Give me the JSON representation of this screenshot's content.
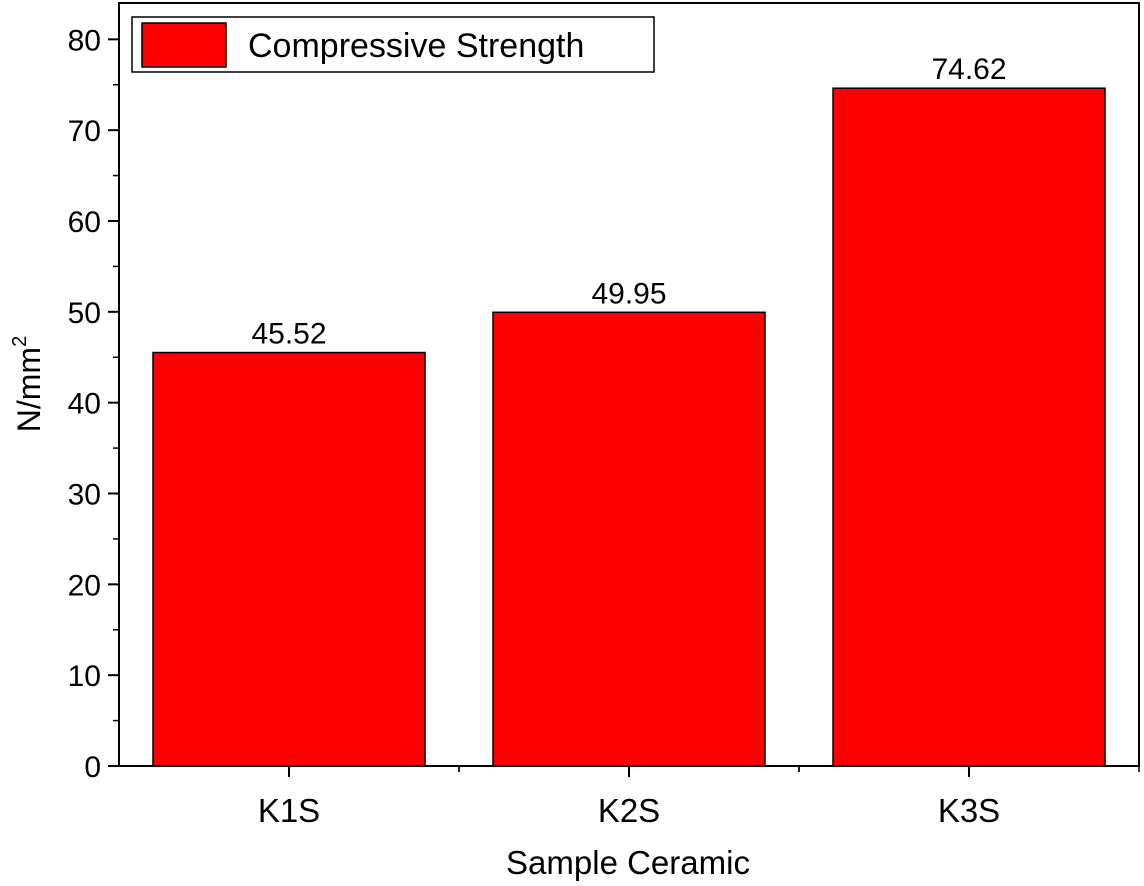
{
  "chart_data": {
    "type": "bar",
    "categories": [
      "K1S",
      "K2S",
      "K3S"
    ],
    "series": [
      {
        "name": "Compressive Strength",
        "values": [
          45.52,
          49.95,
          74.62
        ],
        "color": "#ff0000"
      }
    ],
    "data_labels": [
      "45.52",
      "49.95",
      "74.62"
    ],
    "xlabel": "Sample Ceramic",
    "ylabel": "N/mm",
    "ylabel_superscript": "2",
    "ylim": [
      0,
      84
    ],
    "yticks": [
      0,
      10,
      20,
      30,
      40,
      50,
      60,
      70,
      80
    ],
    "grid": false,
    "legend_position": "top-left"
  }
}
